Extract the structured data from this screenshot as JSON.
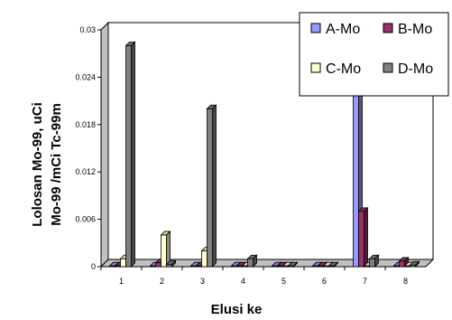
{
  "chart_data": {
    "type": "bar",
    "xlabel": "Elusi ke",
    "ylabel_lines": [
      "Lolosan Mo-99, uCi",
      "Mo-99 /mCi Tc-99m"
    ],
    "categories": [
      "1",
      "2",
      "3",
      "4",
      "5",
      "6",
      "7",
      "8"
    ],
    "ylim": [
      0,
      0.03
    ],
    "yticks": [
      "0",
      "0.006",
      "0.012",
      "0.018",
      "0.024",
      "0.03"
    ],
    "ytick_values": [
      0,
      0.006,
      0.012,
      0.018,
      0.024,
      0.03
    ],
    "grid": false,
    "legend_position": "top-right",
    "series": [
      {
        "name": "A-Mo",
        "color": "#9999ff",
        "values": [
          0,
          0,
          0,
          0,
          0,
          0,
          0.03,
          0
        ]
      },
      {
        "name": "B-Mo",
        "color": "#993366",
        "values": [
          0,
          0.0005,
          0,
          0,
          0,
          0,
          0.007,
          0.0007
        ]
      },
      {
        "name": "C-Mo",
        "color": "#ffffcc",
        "values": [
          0.001,
          0.004,
          0.002,
          0,
          0,
          0,
          0,
          0
        ]
      },
      {
        "name": "D-Mo",
        "color": "#808080",
        "values": [
          0.028,
          0.0003,
          0.02,
          0.001,
          0,
          0,
          0.001,
          0.0002
        ]
      }
    ]
  }
}
